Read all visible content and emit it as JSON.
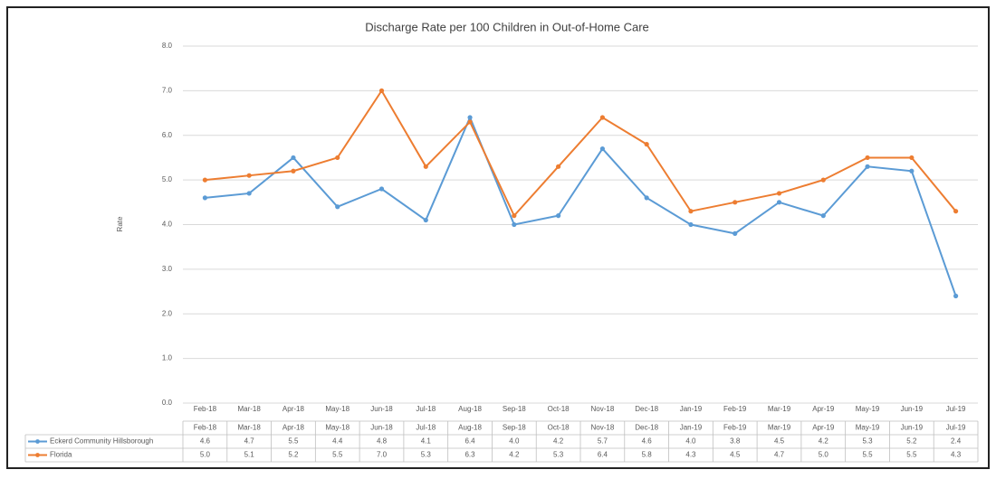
{
  "chart_data": {
    "type": "line",
    "title": "Discharge Rate per 100 Children in Out-of-Home Care",
    "y_label": "Rate",
    "categories": [
      "Feb-18",
      "Mar-18",
      "Apr-18",
      "May-18",
      "Jun-18",
      "Jul-18",
      "Aug-18",
      "Sep-18",
      "Oct-18",
      "Nov-18",
      "Dec-18",
      "Jan-19",
      "Feb-19",
      "Mar-19",
      "Apr-19",
      "May-19",
      "Jun-19",
      "Jul-19"
    ],
    "series": [
      {
        "name": "Eckerd Community Hillsborough",
        "color": "#5b9bd5",
        "values": [
          4.6,
          4.7,
          5.5,
          4.4,
          4.8,
          4.1,
          6.4,
          4.0,
          4.2,
          5.7,
          4.6,
          4.0,
          3.8,
          4.5,
          4.2,
          5.3,
          5.2,
          2.4
        ],
        "value_labels": [
          "4.6",
          "4.7",
          "5.5",
          "4.4",
          "4.8",
          "4.1",
          "6.4",
          "4.0",
          "4.2",
          "5.7",
          "4.6",
          "4.0",
          "3.8",
          "4.5",
          "4.2",
          "5.3",
          "5.2",
          "2.4"
        ]
      },
      {
        "name": "Florida",
        "color": "#ed7d31",
        "values": [
          5.0,
          5.1,
          5.2,
          5.5,
          7.0,
          5.3,
          6.3,
          4.2,
          5.3,
          6.4,
          5.8,
          4.3,
          4.5,
          4.7,
          5.0,
          5.5,
          5.5,
          4.3
        ],
        "value_labels": [
          "5.0",
          "5.1",
          "5.2",
          "5.5",
          "7.0",
          "5.3",
          "6.3",
          "4.2",
          "5.3",
          "6.4",
          "5.8",
          "4.3",
          "4.5",
          "4.7",
          "5.0",
          "5.5",
          "5.5",
          "4.3"
        ]
      }
    ],
    "ylim": [
      0,
      8
    ],
    "yticks": [
      {
        "value": 0,
        "label": "0.0"
      },
      {
        "value": 1,
        "label": "1.0"
      },
      {
        "value": 2,
        "label": "2.0"
      },
      {
        "value": 3,
        "label": "3.0"
      },
      {
        "value": 4,
        "label": "4.0"
      },
      {
        "value": 5,
        "label": "5.0"
      },
      {
        "value": 6,
        "label": "6.0"
      },
      {
        "value": 7,
        "label": "7.0"
      },
      {
        "value": 8,
        "label": "8.0"
      }
    ],
    "grid": true
  }
}
